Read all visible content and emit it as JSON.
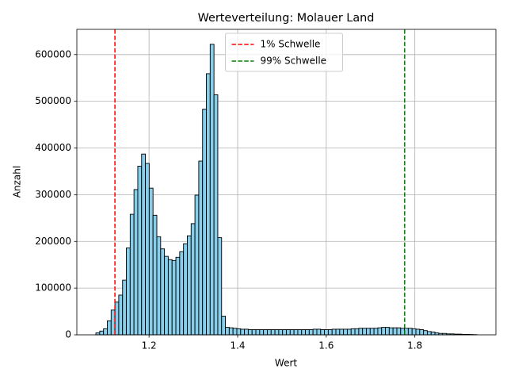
{
  "chart_data": {
    "type": "histogram",
    "title": "Werteverteilung: Molauer Land",
    "x_label": "Wert",
    "y_label": "Anzahl",
    "bins": [
      1.08,
      1.0886,
      1.0972,
      1.1058,
      1.1144,
      1.123,
      1.1316,
      1.1402,
      1.1488,
      1.1574,
      1.166,
      1.1746,
      1.1832,
      1.1918,
      1.2004,
      1.209,
      1.2176,
      1.2262,
      1.2348,
      1.2434,
      1.252,
      1.2606,
      1.2692,
      1.2778,
      1.2864,
      1.295,
      1.3036,
      1.3122,
      1.3208,
      1.3294,
      1.338,
      1.3466,
      1.3552,
      1.3638,
      1.3724,
      1.381,
      1.3896,
      1.3982,
      1.4068,
      1.4154,
      1.424,
      1.4326,
      1.4412,
      1.4498,
      1.4584,
      1.467,
      1.4756,
      1.4842,
      1.4928,
      1.5014,
      1.51,
      1.5186,
      1.5272,
      1.5358,
      1.5444,
      1.553,
      1.5616,
      1.5702,
      1.5788,
      1.5874,
      1.596,
      1.6046,
      1.6132,
      1.6218,
      1.6304,
      1.639,
      1.6476,
      1.6562,
      1.6648,
      1.6734,
      1.682,
      1.6906,
      1.6992,
      1.7078,
      1.7164,
      1.725,
      1.7336,
      1.7422,
      1.7508,
      1.7594,
      1.768,
      1.7766,
      1.7852,
      1.7938,
      1.8024,
      1.811,
      1.8196,
      1.8282,
      1.8368,
      1.8454,
      1.854,
      1.8626,
      1.8712,
      1.8798,
      1.8884,
      1.897,
      1.9056,
      1.9142,
      1.9228,
      1.9314,
      1.94
    ],
    "values": [
      4000,
      8000,
      13000,
      30000,
      53000,
      70000,
      85000,
      117000,
      186000,
      258000,
      311000,
      361000,
      387000,
      367000,
      314000,
      256000,
      210000,
      184000,
      168000,
      161000,
      159000,
      166000,
      178000,
      195000,
      212000,
      238000,
      299000,
      372000,
      483000,
      559000,
      622000,
      514000,
      208000,
      40000,
      16000,
      15000,
      14000,
      13000,
      12000,
      12000,
      11000,
      11000,
      11000,
      11000,
      11000,
      11000,
      11000,
      11000,
      11000,
      11000,
      11000,
      11000,
      11000,
      11000,
      11000,
      11000,
      11000,
      12000,
      12000,
      11000,
      11000,
      11000,
      12000,
      12000,
      12000,
      12000,
      12000,
      13000,
      13000,
      14000,
      14000,
      14000,
      14000,
      14000,
      15000,
      16000,
      16000,
      15000,
      15000,
      15000,
      14000,
      14000,
      14000,
      13000,
      12000,
      11000,
      9000,
      7000,
      6000,
      4000,
      3000,
      3000,
      2000,
      2000,
      1500,
      1500,
      1000,
      1000,
      700,
      400
    ],
    "color": "#87ceeb",
    "edge_color": "#000000",
    "thresholds": [
      {
        "name": "1% Schwelle",
        "value": 1.123,
        "color": "#ff0000"
      },
      {
        "name": "99% Schwelle",
        "value": 1.777,
        "color": "#008000"
      }
    ],
    "xlim": [
      1.037,
      1.983
    ],
    "ylim": [
      0,
      654000
    ],
    "xticks": [
      1.2,
      1.4,
      1.6,
      1.8
    ],
    "yticks": [
      0,
      100000,
      200000,
      300000,
      400000,
      500000,
      600000
    ],
    "grid": true,
    "legend_position": "upper center"
  }
}
